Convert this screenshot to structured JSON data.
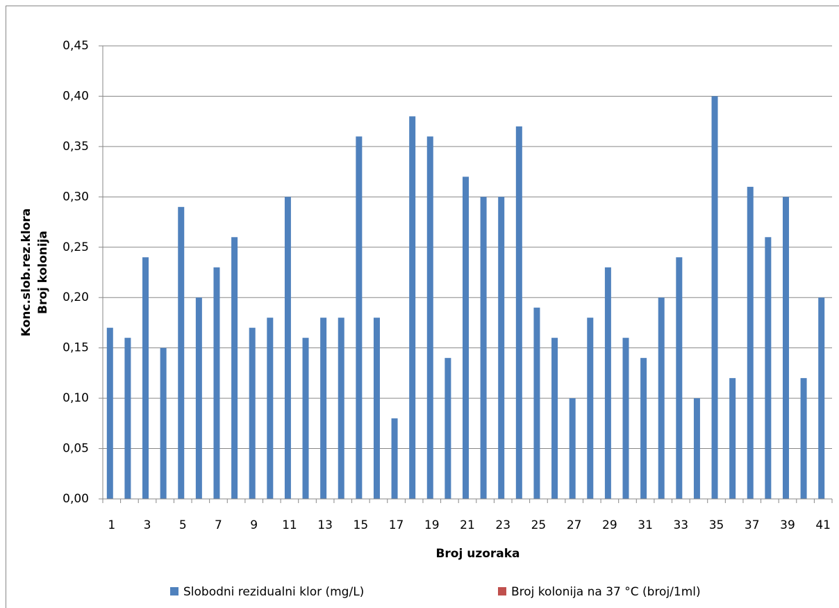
{
  "chart_data": {
    "type": "bar",
    "x_label": "Broj uzoraka",
    "y_label": [
      "Konc.slob.rez.klora",
      "Broj kolonija"
    ],
    "categories": [
      "1",
      null,
      "3",
      null,
      "5",
      null,
      "7",
      null,
      "9",
      null,
      "11",
      null,
      "13",
      null,
      "15",
      null,
      "17",
      null,
      "19",
      null,
      "21",
      null,
      "23",
      null,
      "25",
      null,
      "27",
      null,
      "29",
      null,
      "31",
      null,
      "33",
      null,
      "35",
      null,
      "37",
      null,
      "39",
      null,
      "41"
    ],
    "series": [
      {
        "name": "Slobodni rezidualni klor (mg/L)",
        "color": "#4f81bd",
        "values": [
          0.17,
          0.16,
          0.24,
          0.15,
          0.29,
          0.2,
          0.23,
          0.26,
          0.17,
          0.18,
          0.3,
          0.16,
          0.18,
          0.18,
          0.36,
          0.18,
          0.08,
          0.38,
          0.36,
          0.14,
          0.32,
          0.3,
          0.3,
          0.37,
          0.19,
          0.16,
          0.1,
          0.18,
          0.23,
          0.16,
          0.14,
          0.2,
          0.24,
          0.1,
          0.4,
          0.12,
          0.31,
          0.26,
          0.3,
          0.12,
          0.2
        ]
      },
      {
        "name": "Broj kolonija na 37 °C (broj/1ml)",
        "color": "#c0504d",
        "values": [
          0,
          0,
          0,
          0,
          0,
          0,
          0,
          0,
          0,
          0,
          0,
          0,
          0,
          0,
          0,
          0,
          0,
          0,
          0,
          0,
          0,
          0,
          0,
          0,
          0,
          0,
          0,
          0,
          0,
          0,
          0,
          0,
          0,
          0,
          0,
          0,
          0,
          0,
          0,
          0,
          0
        ]
      }
    ],
    "ylim": [
      0,
      0.45
    ],
    "yticks": [
      {
        "value": 0,
        "label": "0,00"
      },
      {
        "value": 0.05,
        "label": "0,05"
      },
      {
        "value": 0.1,
        "label": "0,10"
      },
      {
        "value": 0.15,
        "label": "0,15"
      },
      {
        "value": 0.2,
        "label": "0,20"
      },
      {
        "value": 0.25,
        "label": "0,25"
      },
      {
        "value": 0.3,
        "label": "0,30"
      },
      {
        "value": 0.35,
        "label": "0,35"
      },
      {
        "value": 0.4,
        "label": "0,40"
      },
      {
        "value": 0.45,
        "label": "0,45"
      }
    ],
    "grid": true
  }
}
